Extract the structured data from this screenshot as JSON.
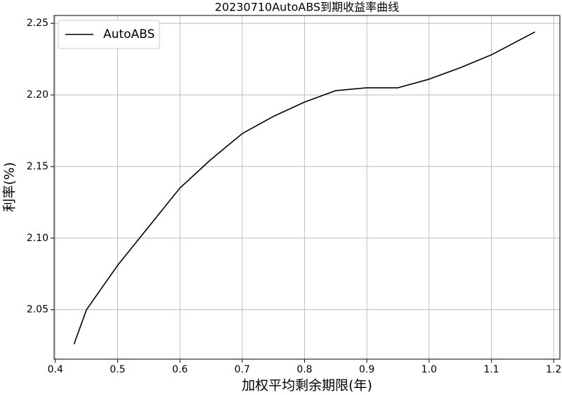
{
  "chart_data": {
    "type": "line",
    "title": "20230710AutoABS到期收益率曲线",
    "x_label": "加权平均剩余期限(年)",
    "y_label": "利率(%)",
    "x": [
      0.43,
      0.45,
      0.5,
      0.55,
      0.6,
      0.65,
      0.7,
      0.75,
      0.8,
      0.85,
      0.9,
      0.95,
      1.0,
      1.05,
      1.1,
      1.17
    ],
    "series": [
      {
        "name": "AutoABS",
        "color": "#000000",
        "values": [
          2.026,
          2.05,
          2.081,
          2.108,
          2.135,
          2.155,
          2.173,
          2.185,
          2.195,
          2.203,
          2.205,
          2.205,
          2.211,
          2.219,
          2.228,
          2.244
        ]
      }
    ],
    "xlim": [
      0.398,
      1.21
    ],
    "ylim": [
      2.0155,
      2.2555
    ],
    "xticks": [
      0.4,
      0.5,
      0.6,
      0.7,
      0.8,
      0.9,
      {
        "value": 1.0,
        "label": "1.0"
      },
      1.1,
      1.2
    ],
    "yticks": [
      2.05,
      {
        "value": 2.1,
        "label": "2.10"
      },
      2.15,
      {
        "value": 2.2,
        "label": "2.20"
      },
      2.25
    ],
    "grid": true,
    "legend": "upper left"
  }
}
